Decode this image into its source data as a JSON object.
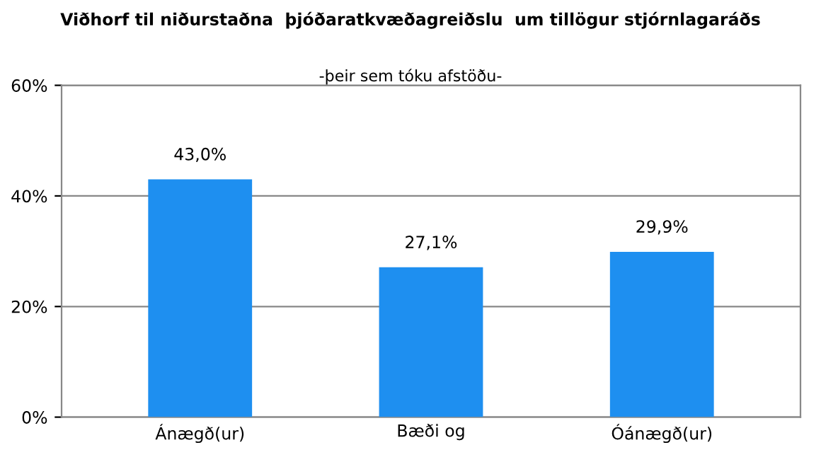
{
  "chart_data": {
    "type": "bar",
    "title": "Viðhorf til niðurstaðna  þjóðaratkvæðagreiðslu  um tillögur stjórnlagaráðs",
    "subtitle": "-þeir sem tóku afstöðu-",
    "categories": [
      "Ánægð(ur)",
      "Bæði og",
      "Óánægð(ur)"
    ],
    "values": [
      43.0,
      27.1,
      29.9
    ],
    "value_labels": [
      "43,0%",
      "27,1%",
      "29,9%"
    ],
    "color": "#1e8ff0",
    "ylim": [
      0,
      60
    ],
    "yticks": [
      {
        "value": 0,
        "label": "0%"
      },
      {
        "value": 20,
        "label": "20%"
      },
      {
        "value": 40,
        "label": "40%"
      },
      {
        "value": 60,
        "label": "60%"
      }
    ],
    "grid": "y"
  }
}
